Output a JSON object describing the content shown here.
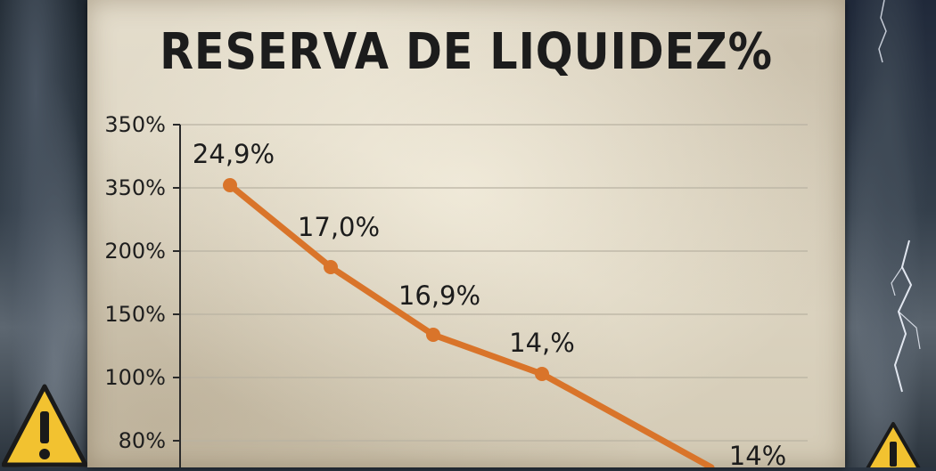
{
  "chart_data": {
    "type": "line",
    "title": "RESERVA DE LIQUIDEZ%",
    "xlabel": "",
    "ylabel": "",
    "y_tick_labels": [
      "350%",
      "350%",
      "200%",
      "150%",
      "100%",
      "80%"
    ],
    "points": [
      {
        "label": "24,9%",
        "value": 24.9
      },
      {
        "label": "17,0%",
        "value": 17.0
      },
      {
        "label": "16,9%",
        "value": 16.9
      },
      {
        "label": "14,%",
        "value": 14.0
      },
      {
        "label": "14%",
        "value": 14.0
      }
    ],
    "grid": true,
    "legend": "none",
    "colors": {
      "line": "#d9742a",
      "text": "#1c1c1c",
      "grid": "#b9b2a2"
    }
  },
  "decorations": {
    "left_icon": "warning-triangle-icon",
    "right_icon": "warning-triangle-icon",
    "background": "storm-clouds-with-lightning"
  }
}
